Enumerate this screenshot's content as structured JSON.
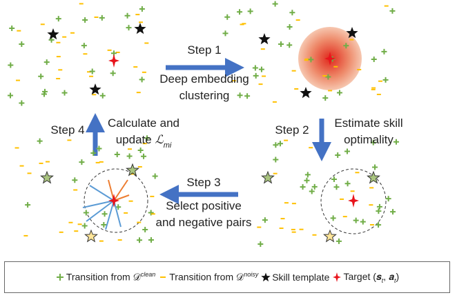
{
  "steps": [
    {
      "label": "Step 1",
      "lines": [
        [
          {
            "text": "Deep embedding"
          }
        ],
        [
          {
            "text": "clustering"
          }
        ]
      ]
    },
    {
      "label": "Step 2",
      "lines": [
        [
          {
            "text": "Estimate skill"
          }
        ],
        [
          {
            "text": "optimality"
          }
        ]
      ]
    },
    {
      "label": "Step 3",
      "lines": [
        [
          {
            "text": "Select positive"
          }
        ],
        [
          {
            "text": "and negative pairs"
          }
        ]
      ]
    },
    {
      "label": "Step 4",
      "lines": [
        [
          {
            "text": "Calculate and"
          }
        ],
        [
          {
            "text": "update "
          },
          {
            "text": "ℒ",
            "style": "italic"
          },
          {
            "text": "mi",
            "script": "sub"
          }
        ]
      ]
    }
  ],
  "legend": [
    {
      "icon": "plus",
      "parts": [
        {
          "text": "Transition from "
        },
        {
          "text": "𝒟"
        },
        {
          "text": "clean",
          "script": "sup"
        }
      ]
    },
    {
      "icon": "minus",
      "parts": [
        {
          "text": "Transition from "
        },
        {
          "text": "𝒟"
        },
        {
          "text": "noisy",
          "script": "sup"
        }
      ]
    },
    {
      "icon": "star",
      "parts": [
        {
          "text": "Skill template"
        }
      ]
    },
    {
      "icon": "target",
      "parts": [
        {
          "text": "Target ("
        },
        {
          "text": "𝒔"
        },
        {
          "text": "t",
          "script": "sub"
        },
        {
          "text": ", "
        },
        {
          "text": "𝒂"
        },
        {
          "text": "t",
          "script": "sub"
        },
        {
          "text": ")"
        }
      ]
    }
  ]
}
